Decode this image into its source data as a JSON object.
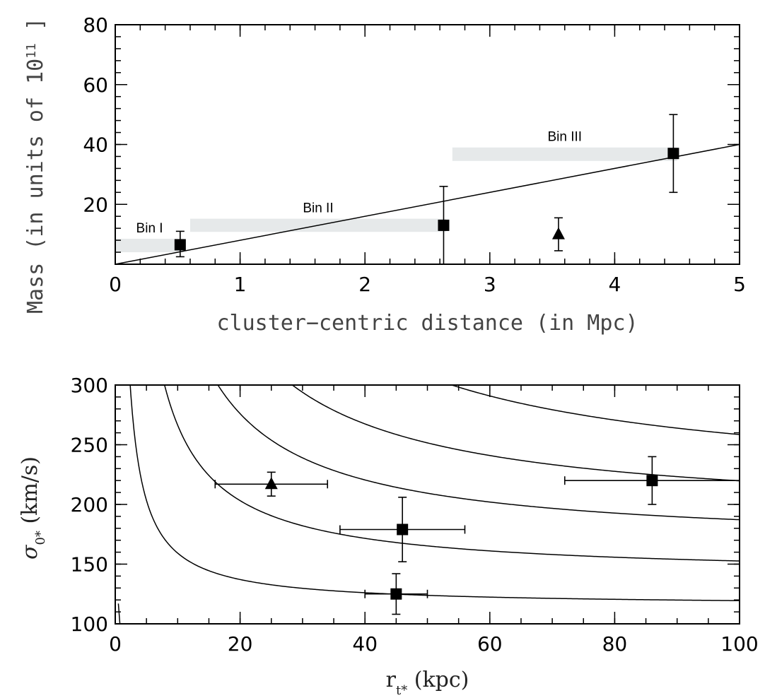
{
  "chart_data": [
    {
      "type": "scatter",
      "xlabel": "cluster−centric distance (in Mpc)",
      "ylabel": "Mass (in units of 10",
      "ylabel_sup": "11",
      "ylabel_tail": " ]",
      "xlim": [
        0,
        5
      ],
      "ylim": [
        0,
        80
      ],
      "xticks": [
        0,
        1,
        2,
        3,
        4,
        5
      ],
      "yticks": [
        20,
        40,
        60,
        80
      ],
      "x_minor": 0.2,
      "y_minor": 4,
      "points": [
        {
          "x": 0.52,
          "y": 6.5,
          "yerr": [
            4,
            4.5
          ],
          "marker": "square"
        },
        {
          "x": 2.63,
          "y": 13,
          "yerr": [
            13,
            13
          ],
          "marker": "square"
        },
        {
          "x": 4.47,
          "y": 37,
          "yerr": [
            13,
            13
          ],
          "marker": "square"
        },
        {
          "x": 3.55,
          "y": 10,
          "yerr": [
            5.5,
            5.5
          ],
          "marker": "triangle"
        }
      ],
      "fit_line": {
        "x": [
          0,
          5
        ],
        "y": [
          0,
          40
        ]
      },
      "bins": [
        {
          "label": "Bin I",
          "x": [
            0,
            0.55
          ],
          "y": [
            4,
            8.5
          ]
        },
        {
          "label": "Bin II",
          "x": [
            0.6,
            2.65
          ],
          "y": [
            10.8,
            15.2
          ]
        },
        {
          "label": "Bin III",
          "x": [
            2.7,
            4.5
          ],
          "y": [
            34.5,
            39
          ]
        }
      ]
    },
    {
      "type": "scatter",
      "xlabel": "r",
      "xlabel_sub": "t*",
      "xlabel_tail": " (kpc)",
      "ylabel": "σ",
      "ylabel_sub": "0*",
      "ylabel_tail": " (km/s)",
      "xlim": [
        0,
        100
      ],
      "ylim": [
        100,
        300
      ],
      "xticks": [
        0,
        20,
        40,
        60,
        80,
        100
      ],
      "yticks": [
        100,
        150,
        200,
        250,
        300
      ],
      "x_minor": 5,
      "y_minor": 10,
      "points": [
        {
          "x": 25,
          "y": 217,
          "xerr": [
            9,
            9
          ],
          "yerr": [
            10,
            10
          ],
          "marker": "triangle"
        },
        {
          "x": 46,
          "y": 179,
          "xerr": [
            10,
            10
          ],
          "yerr": [
            27,
            27
          ],
          "marker": "square"
        },
        {
          "x": 45,
          "y": 125,
          "xerr": [
            5,
            5
          ],
          "yerr": [
            17,
            17
          ],
          "marker": "square"
        },
        {
          "x": 86,
          "y": 220,
          "xerr": [
            14,
            14
          ],
          "yerr": [
            20,
            20
          ],
          "marker": "square"
        }
      ],
      "curves": [
        {
          "sigma_inf": 65,
          "a": 2.0
        },
        {
          "sigma_inf": 115,
          "a": 6.2
        },
        {
          "sigma_inf": 140,
          "a": 9.5
        },
        {
          "sigma_inf": 165,
          "a": 11.6
        },
        {
          "sigma_inf": 188,
          "a": 13.0
        },
        {
          "sigma_inf": 210,
          "a": 15.2
        }
      ]
    }
  ]
}
